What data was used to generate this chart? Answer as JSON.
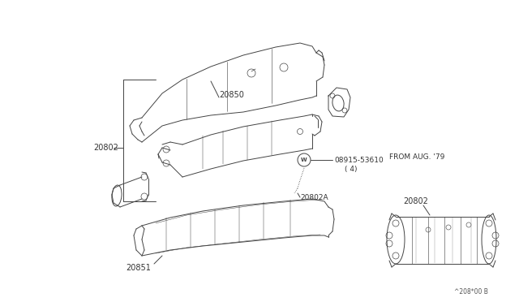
{
  "bg_color": "#ffffff",
  "line_color": "#444444",
  "text_color": "#333333",
  "fig_width": 6.4,
  "fig_height": 3.72,
  "dpi": 100,
  "parts": {
    "upper_shield_label": "20850",
    "assembly_label": "20802",
    "bolt_label": "08915-53610",
    "bolt_qty": "( 4)",
    "cat_body_label": "20802A",
    "lower_shield_label": "20851",
    "from_aug": "FROM AUG. '79",
    "right_label": "20802",
    "diagram_id": "^208*00 B"
  }
}
